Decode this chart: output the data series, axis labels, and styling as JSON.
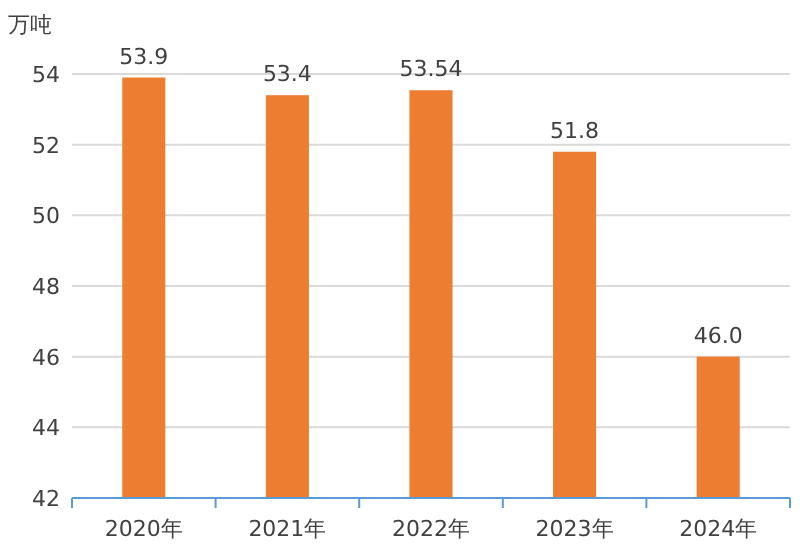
{
  "chart_data": {
    "type": "bar",
    "ylabel": "万吨",
    "categories": [
      "2020年",
      "2021年",
      "2022年",
      "2023年",
      "2024年"
    ],
    "values": [
      53.9,
      53.4,
      53.54,
      51.8,
      46.0
    ],
    "value_labels": [
      "53.9",
      "53.4",
      "53.54",
      "51.8",
      "46.0"
    ],
    "color": "#ed7d31",
    "ylim": [
      42,
      54
    ],
    "yticks": [
      42,
      44,
      46,
      48,
      50,
      52,
      54
    ],
    "grid": "y"
  }
}
